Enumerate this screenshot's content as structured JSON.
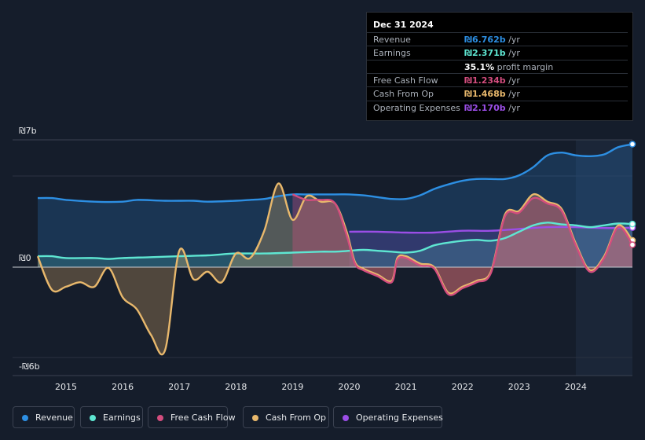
{
  "chart_data": {
    "type": "area",
    "currency": "₪",
    "y_axis": {
      "top_label": "₪7b",
      "zero_label": "₪0",
      "bottom_label": "-₪6b",
      "ylim": [
        -6,
        7
      ]
    },
    "x_axis": {
      "ticks": [
        "2015",
        "2016",
        "2017",
        "2018",
        "2019",
        "2020",
        "2021",
        "2022",
        "2023",
        "2024"
      ],
      "xlim": [
        2014.5,
        2025.0
      ]
    },
    "forecast_shade_start": 2024.0,
    "series": [
      {
        "name": "Revenue",
        "color": "#2d8fe3",
        "points": [
          [
            2014.5,
            3.8
          ],
          [
            2014.75,
            3.8
          ],
          [
            2015.0,
            3.7
          ],
          [
            2015.5,
            3.6
          ],
          [
            2016.0,
            3.6
          ],
          [
            2016.25,
            3.7
          ],
          [
            2016.75,
            3.65
          ],
          [
            2017.25,
            3.65
          ],
          [
            2017.5,
            3.6
          ],
          [
            2018.0,
            3.65
          ],
          [
            2018.25,
            3.7
          ],
          [
            2018.5,
            3.75
          ],
          [
            2018.75,
            3.9
          ],
          [
            2019.0,
            4.0
          ],
          [
            2019.25,
            4.0
          ],
          [
            2019.75,
            4.0
          ],
          [
            2020.0,
            4.0
          ],
          [
            2020.25,
            3.95
          ],
          [
            2020.5,
            3.85
          ],
          [
            2020.75,
            3.75
          ],
          [
            2021.0,
            3.75
          ],
          [
            2021.25,
            3.95
          ],
          [
            2021.5,
            4.3
          ],
          [
            2021.75,
            4.55
          ],
          [
            2022.0,
            4.75
          ],
          [
            2022.25,
            4.85
          ],
          [
            2022.5,
            4.85
          ],
          [
            2022.75,
            4.85
          ],
          [
            2023.0,
            5.05
          ],
          [
            2023.25,
            5.5
          ],
          [
            2023.5,
            6.15
          ],
          [
            2023.75,
            6.3
          ],
          [
            2024.0,
            6.15
          ],
          [
            2024.25,
            6.1
          ],
          [
            2024.5,
            6.2
          ],
          [
            2024.75,
            6.6
          ],
          [
            2025.0,
            6.76
          ]
        ]
      },
      {
        "name": "Earnings",
        "color": "#5ee6d2",
        "points": [
          [
            2014.5,
            0.6
          ],
          [
            2014.75,
            0.6
          ],
          [
            2015.0,
            0.5
          ],
          [
            2015.5,
            0.5
          ],
          [
            2015.75,
            0.45
          ],
          [
            2016.0,
            0.5
          ],
          [
            2016.5,
            0.55
          ],
          [
            2017.0,
            0.6
          ],
          [
            2017.5,
            0.65
          ],
          [
            2018.0,
            0.75
          ],
          [
            2018.5,
            0.75
          ],
          [
            2019.0,
            0.8
          ],
          [
            2019.5,
            0.85
          ],
          [
            2019.75,
            0.85
          ],
          [
            2020.0,
            0.9
          ],
          [
            2020.25,
            0.95
          ],
          [
            2020.5,
            0.9
          ],
          [
            2020.75,
            0.85
          ],
          [
            2021.0,
            0.8
          ],
          [
            2021.25,
            0.9
          ],
          [
            2021.5,
            1.2
          ],
          [
            2021.75,
            1.35
          ],
          [
            2022.0,
            1.45
          ],
          [
            2022.25,
            1.5
          ],
          [
            2022.5,
            1.45
          ],
          [
            2022.75,
            1.6
          ],
          [
            2023.0,
            1.95
          ],
          [
            2023.25,
            2.3
          ],
          [
            2023.5,
            2.45
          ],
          [
            2023.75,
            2.35
          ],
          [
            2024.0,
            2.3
          ],
          [
            2024.25,
            2.2
          ],
          [
            2024.5,
            2.3
          ],
          [
            2024.75,
            2.4
          ],
          [
            2025.0,
            2.37
          ]
        ]
      },
      {
        "name": "Free Cash Flow",
        "color": "#d34d7e",
        "points": [
          [
            2019.0,
            4.0
          ],
          [
            2019.25,
            3.7
          ],
          [
            2019.5,
            3.7
          ],
          [
            2019.75,
            3.5
          ],
          [
            2019.95,
            1.8
          ],
          [
            2020.1,
            0.2
          ],
          [
            2020.25,
            -0.2
          ],
          [
            2020.5,
            -0.6
          ],
          [
            2020.75,
            -1.0
          ],
          [
            2020.85,
            0.4
          ],
          [
            2021.0,
            0.5
          ],
          [
            2021.25,
            0.1
          ],
          [
            2021.5,
            -0.1
          ],
          [
            2021.75,
            -1.8
          ],
          [
            2022.0,
            -1.4
          ],
          [
            2022.25,
            -1.0
          ],
          [
            2022.5,
            -0.4
          ],
          [
            2022.75,
            2.8
          ],
          [
            2023.0,
            3.0
          ],
          [
            2023.25,
            3.8
          ],
          [
            2023.5,
            3.5
          ],
          [
            2023.75,
            3.1
          ],
          [
            2024.0,
            1.2
          ],
          [
            2024.25,
            -0.3
          ],
          [
            2024.5,
            0.5
          ],
          [
            2024.75,
            2.2
          ],
          [
            2025.0,
            1.23
          ]
        ]
      },
      {
        "name": "Cash From Op",
        "color": "#e8b86c",
        "points": [
          [
            2014.5,
            0.6
          ],
          [
            2014.75,
            -1.5
          ],
          [
            2015.0,
            -1.3
          ],
          [
            2015.25,
            -1.0
          ],
          [
            2015.5,
            -1.3
          ],
          [
            2015.75,
            -0.05
          ],
          [
            2016.0,
            -2.0
          ],
          [
            2016.25,
            -2.8
          ],
          [
            2016.5,
            -4.5
          ],
          [
            2016.75,
            -5.5
          ],
          [
            2017.0,
            0.9
          ],
          [
            2017.25,
            -0.8
          ],
          [
            2017.5,
            -0.3
          ],
          [
            2017.75,
            -1.0
          ],
          [
            2018.0,
            0.75
          ],
          [
            2018.25,
            0.5
          ],
          [
            2018.5,
            2.0
          ],
          [
            2018.75,
            4.6
          ],
          [
            2019.0,
            2.6
          ],
          [
            2019.25,
            3.9
          ],
          [
            2019.5,
            3.6
          ],
          [
            2019.75,
            3.5
          ],
          [
            2019.95,
            2.0
          ],
          [
            2020.1,
            0.3
          ],
          [
            2020.25,
            -0.1
          ],
          [
            2020.5,
            -0.5
          ],
          [
            2020.75,
            -0.9
          ],
          [
            2020.85,
            0.5
          ],
          [
            2021.0,
            0.6
          ],
          [
            2021.25,
            0.2
          ],
          [
            2021.5,
            0.0
          ],
          [
            2021.75,
            -1.7
          ],
          [
            2022.0,
            -1.3
          ],
          [
            2022.25,
            -0.9
          ],
          [
            2022.5,
            -0.3
          ],
          [
            2022.75,
            2.9
          ],
          [
            2023.0,
            3.1
          ],
          [
            2023.25,
            4.0
          ],
          [
            2023.5,
            3.6
          ],
          [
            2023.75,
            3.2
          ],
          [
            2024.0,
            1.3
          ],
          [
            2024.25,
            -0.2
          ],
          [
            2024.5,
            0.6
          ],
          [
            2024.75,
            2.3
          ],
          [
            2025.0,
            1.47
          ]
        ]
      },
      {
        "name": "Operating Expenses",
        "color": "#9b4ee6",
        "points": [
          [
            2020.0,
            1.95
          ],
          [
            2020.5,
            1.95
          ],
          [
            2021.0,
            1.9
          ],
          [
            2021.5,
            1.9
          ],
          [
            2022.0,
            2.0
          ],
          [
            2022.5,
            2.0
          ],
          [
            2023.0,
            2.1
          ],
          [
            2023.5,
            2.2
          ],
          [
            2024.0,
            2.2
          ],
          [
            2024.5,
            2.15
          ],
          [
            2025.0,
            2.17
          ]
        ]
      }
    ]
  },
  "tooltip": {
    "date": "Dec 31 2024",
    "rows": [
      {
        "label": "Revenue",
        "value": "₪6.762b",
        "unit": "/yr",
        "color": "#2d8fe3"
      },
      {
        "label": "Earnings",
        "value": "₪2.371b",
        "unit": "/yr",
        "color": "#5ee6d2"
      },
      {
        "label": "",
        "value": "35.1%",
        "unit": "profit margin",
        "color": "#ffffff"
      },
      {
        "label": "Free Cash Flow",
        "value": "₪1.234b",
        "unit": "/yr",
        "color": "#d34d7e"
      },
      {
        "label": "Cash From Op",
        "value": "₪1.468b",
        "unit": "/yr",
        "color": "#e8b86c"
      },
      {
        "label": "Operating Expenses",
        "value": "₪2.170b",
        "unit": "/yr",
        "color": "#9b4ee6"
      }
    ]
  },
  "legend": [
    {
      "label": "Revenue",
      "color": "#2d8fe3"
    },
    {
      "label": "Earnings",
      "color": "#5ee6d2"
    },
    {
      "label": "Free Cash Flow",
      "color": "#d34d7e"
    },
    {
      "label": "Cash From Op",
      "color": "#e8b86c"
    },
    {
      "label": "Operating Expenses",
      "color": "#9b4ee6"
    }
  ]
}
